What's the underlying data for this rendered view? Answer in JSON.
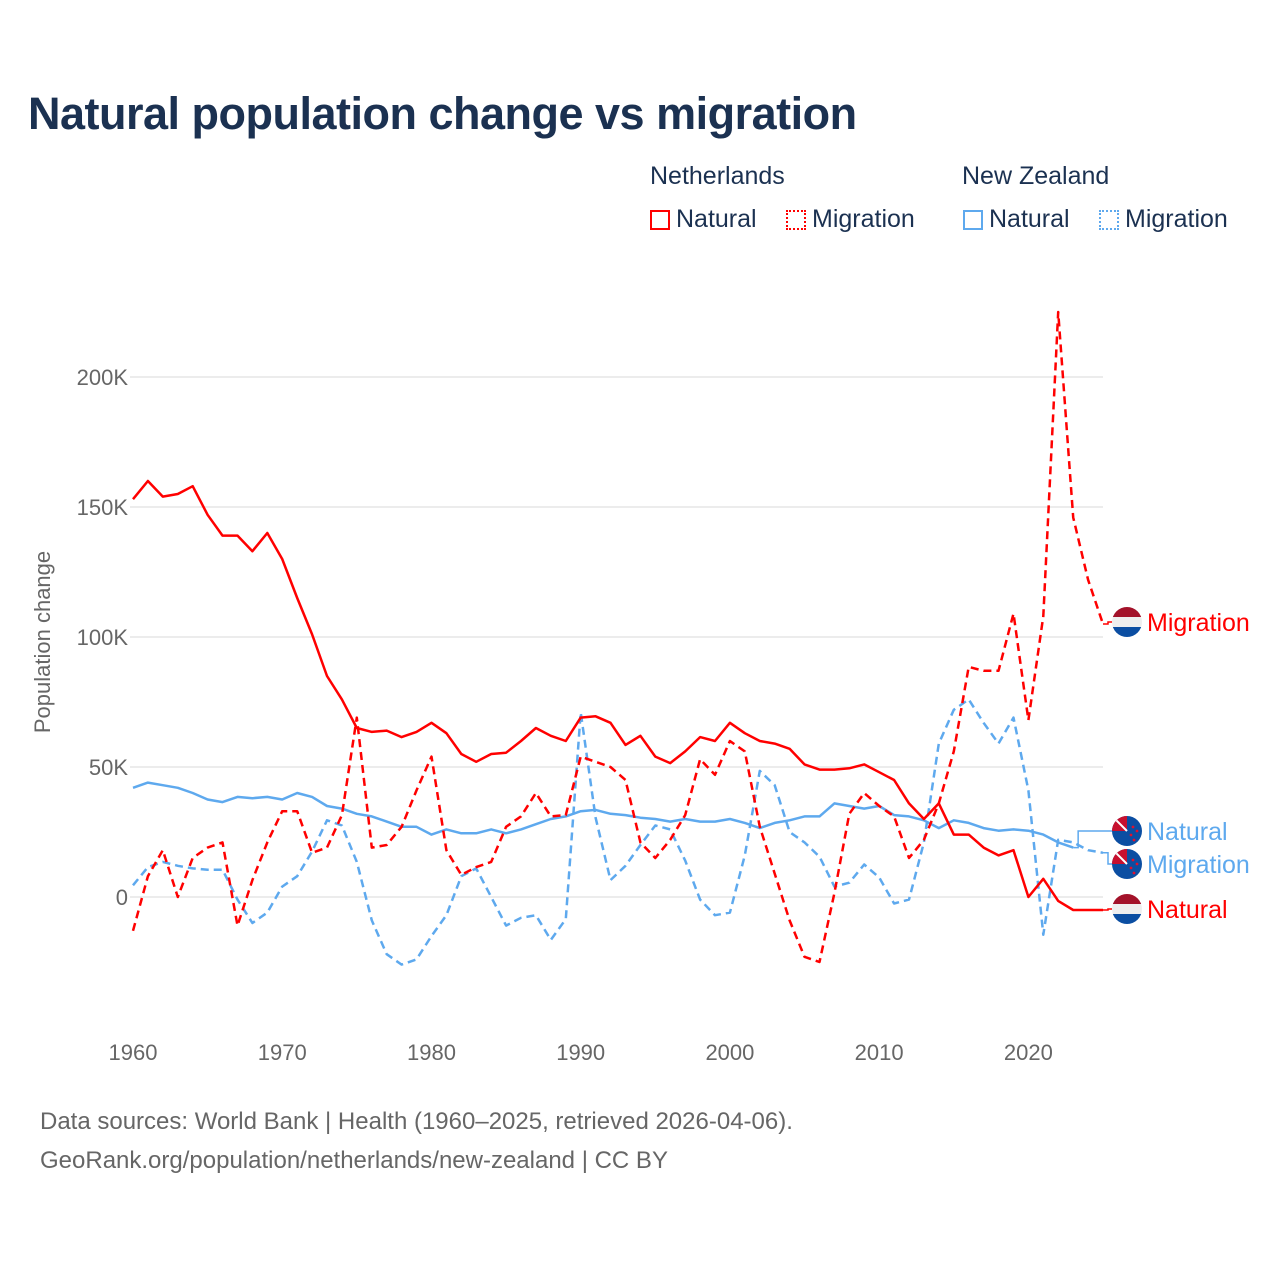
{
  "title": "Natural population change vs migration",
  "legend": {
    "groups": [
      {
        "name": "Netherlands",
        "items": [
          {
            "label": "Natural",
            "style": "solid"
          },
          {
            "label": "Migration",
            "style": "dotted"
          }
        ],
        "color": "#ff0000"
      },
      {
        "name": "New Zealand",
        "items": [
          {
            "label": "Natural",
            "style": "solid"
          },
          {
            "label": "Migration",
            "style": "dotted"
          }
        ],
        "color": "#5ea9ee"
      }
    ]
  },
  "footer": {
    "line1": "Data sources: World Bank | Health (1960–2025, retrieved 2026-04-06).",
    "line2": "GeoRank.org/population/netherlands/new-zealand | CC BY"
  },
  "chart_data": {
    "type": "line",
    "title": "Natural population change vs migration",
    "xlabel": "",
    "ylabel": "Population change",
    "xlim": [
      1960,
      2025
    ],
    "ylim": [
      -45000,
      230000
    ],
    "yticks": [
      0,
      50000,
      100000,
      150000,
      200000
    ],
    "ytick_labels": [
      "0",
      "50K",
      "100K",
      "150K",
      "200K"
    ],
    "xticks": [
      1960,
      1970,
      1980,
      1990,
      2000,
      2010,
      2020
    ],
    "xtick_labels": [
      "1960",
      "1970",
      "1980",
      "1990",
      "2000",
      "2010",
      "2020"
    ],
    "grid": true,
    "x_start": 1960,
    "series": [
      {
        "name": "Netherlands Natural",
        "end_label": "Natural",
        "country": "Netherlands",
        "color": "#ff0000",
        "dash": false,
        "values": [
          153,
          160,
          154,
          155,
          158,
          147,
          139,
          139,
          133,
          140,
          130,
          115,
          101,
          85,
          76,
          65,
          63.5,
          64,
          61.5,
          63.5,
          67,
          63,
          55,
          52,
          55,
          55.5,
          60,
          65,
          62,
          60,
          69,
          69.5,
          67,
          58.5,
          62,
          54,
          51.5,
          56,
          61.5,
          60,
          67,
          63,
          60,
          59,
          57,
          51,
          49,
          49,
          49.5,
          51,
          48,
          45,
          36,
          30,
          36,
          24,
          24,
          19,
          16,
          18,
          0,
          7,
          -1.5,
          -5,
          -5,
          -5
        ]
      },
      {
        "name": "Netherlands Migration",
        "end_label": "Migration",
        "country": "Netherlands",
        "color": "#ff0000",
        "dash": true,
        "values": [
          -13,
          8,
          18,
          0,
          15,
          19,
          21,
          -11,
          6.5,
          21,
          33,
          33,
          17,
          19,
          31.5,
          69,
          19,
          20,
          27,
          41,
          54,
          18,
          8.5,
          11.5,
          13.5,
          27,
          31,
          40,
          31,
          31.5,
          54,
          52,
          50,
          45,
          21,
          15,
          22,
          31.5,
          53,
          47,
          60,
          56,
          27,
          9,
          -9,
          -23,
          -25,
          1.5,
          32,
          40,
          35,
          31,
          15,
          22,
          36,
          56,
          88.5,
          87,
          87,
          109,
          68,
          108,
          225,
          146,
          122,
          105
        ]
      },
      {
        "name": "New Zealand Natural",
        "end_label": "Natural",
        "country": "New Zealand",
        "color": "#5ea9ee",
        "dash": false,
        "values": [
          42,
          44,
          43,
          42,
          40,
          37.5,
          36.5,
          38.5,
          38,
          38.5,
          37.5,
          40,
          38.5,
          35,
          34,
          32,
          31,
          29,
          27,
          27,
          24,
          26,
          24.5,
          24.5,
          26,
          24.5,
          26,
          28,
          30,
          31,
          33,
          33.5,
          32,
          31.5,
          30.5,
          30,
          29,
          30,
          29,
          29,
          30,
          28.5,
          26.5,
          28.5,
          29.5,
          31,
          31,
          36,
          35,
          34,
          35,
          31.5,
          31,
          29.5,
          26.5,
          29.5,
          28.5,
          26.5,
          25.5,
          26,
          25.5,
          24,
          21,
          19
        ]
      },
      {
        "name": "New Zealand Migration",
        "end_label": "Migration",
        "country": "New Zealand",
        "color": "#5ea9ee",
        "dash": true,
        "values": [
          4.5,
          11.5,
          13.5,
          12,
          11,
          10.5,
          10.5,
          -1,
          -10,
          -6,
          4,
          8,
          17.5,
          29.5,
          27.5,
          13.5,
          -9,
          -22,
          -26,
          -24,
          -15,
          -7,
          8,
          11,
          0,
          -11,
          -8,
          -7,
          -16.5,
          -8.5,
          71,
          30.5,
          6.5,
          12,
          20,
          27.5,
          26,
          14,
          -1,
          -7,
          -6,
          16,
          48.5,
          43,
          25,
          21,
          15.5,
          4,
          5.5,
          12.5,
          7.5,
          -2.5,
          -1,
          21,
          59,
          72,
          76,
          67,
          59,
          69,
          41,
          -14.5,
          22,
          21,
          18,
          17
        ]
      }
    ],
    "value_unit": "thousands"
  }
}
